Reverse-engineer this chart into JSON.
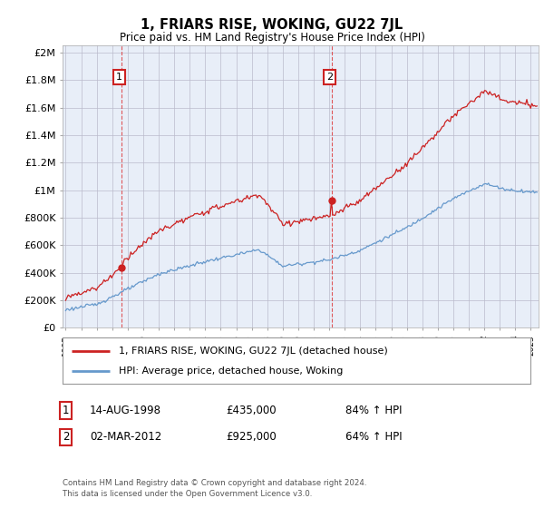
{
  "title": "1, FRIARS RISE, WOKING, GU22 7JL",
  "subtitle": "Price paid vs. HM Land Registry's House Price Index (HPI)",
  "ylabel_ticks": [
    "£0",
    "£200K",
    "£400K",
    "£600K",
    "£800K",
    "£1M",
    "£1.2M",
    "£1.4M",
    "£1.6M",
    "£1.8M",
    "£2M"
  ],
  "ylabel_values": [
    0,
    200000,
    400000,
    600000,
    800000,
    1000000,
    1200000,
    1400000,
    1600000,
    1800000,
    2000000
  ],
  "ylim": [
    0,
    2050000
  ],
  "hpi_color": "#6699cc",
  "price_color": "#cc2222",
  "marker_color": "#cc2222",
  "chart_bg": "#e8eef8",
  "sale1_x": 1998.62,
  "sale1_y": 435000,
  "sale2_x": 2012.17,
  "sale2_y": 925000,
  "legend_line1": "1, FRIARS RISE, WOKING, GU22 7JL (detached house)",
  "legend_line2": "HPI: Average price, detached house, Woking",
  "table_row1": [
    "1",
    "14-AUG-1998",
    "£435,000",
    "84% ↑ HPI"
  ],
  "table_row2": [
    "2",
    "02-MAR-2012",
    "£925,000",
    "64% ↑ HPI"
  ],
  "footnote": "Contains HM Land Registry data © Crown copyright and database right 2024.\nThis data is licensed under the Open Government Licence v3.0.",
  "background_color": "#ffffff",
  "grid_color": "#bbbbcc",
  "vline_color": "#dd3333",
  "xlim_start": 1994.8,
  "xlim_end": 2025.5
}
